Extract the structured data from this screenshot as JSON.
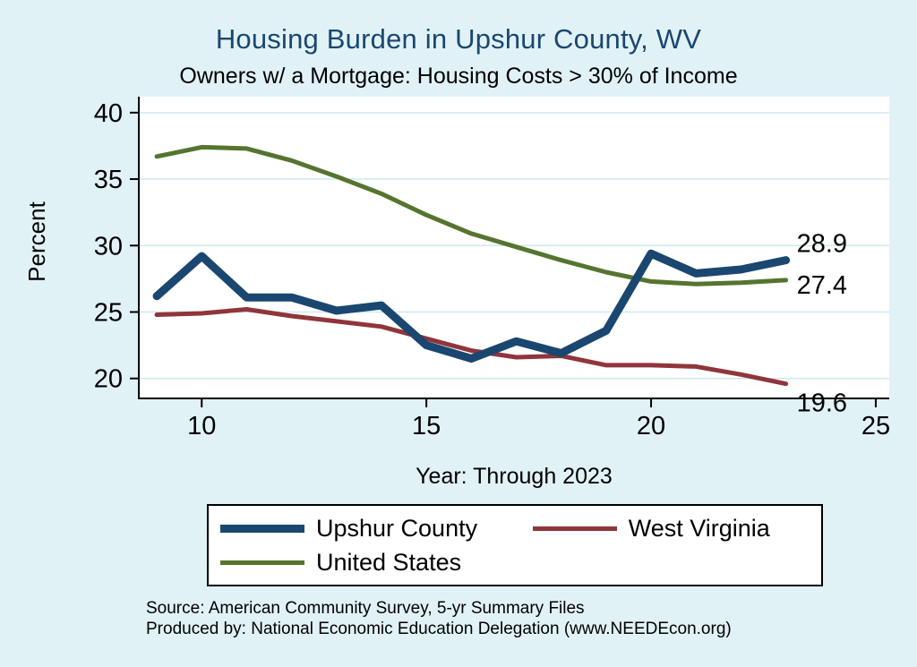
{
  "title": "Housing Burden in Upshur County, WV",
  "subtitle": "Owners w/ a Mortgage: Housing Costs > 30% of Income",
  "axes": {
    "ylabel": "Percent",
    "xlabel": "Year: Through 2023"
  },
  "notes": {
    "line1": "Source: American Community Survey, 5-yr Summary Files",
    "line2": "Produced by: National Economic Education Delegation (www.NEEDEcon.org)"
  },
  "colors": {
    "background": "#e1f2f7",
    "plot_background": "#ffffff",
    "title": "#1a476f",
    "gridline": "#cfe8f2",
    "axis": "#000000",
    "text": "#000000"
  },
  "chart_data": {
    "type": "line",
    "title": "Housing Burden in Upshur County, WV",
    "subtitle": "Owners w/ a Mortgage: Housing Costs > 30% of Income",
    "xlabel": "Year: Through 2023",
    "ylabel": "Percent",
    "x": [
      9,
      10,
      11,
      12,
      13,
      14,
      15,
      16,
      17,
      18,
      19,
      20,
      21,
      22,
      23
    ],
    "series": [
      {
        "name": "Upshur County",
        "color": "#1a476f",
        "line_width": 9,
        "values": [
          26.2,
          29.2,
          26.1,
          26.1,
          25.1,
          25.5,
          22.5,
          21.5,
          22.8,
          21.9,
          23.6,
          29.4,
          27.9,
          28.2,
          28.9
        ],
        "end_label": "28.9",
        "end_label_dy": -9
      },
      {
        "name": "West Virginia",
        "color": "#90353b",
        "line_width": 5,
        "values": [
          24.8,
          24.9,
          25.2,
          24.7,
          24.3,
          23.9,
          23.0,
          22.1,
          21.6,
          21.7,
          21.0,
          21.0,
          20.9,
          20.3,
          19.6
        ],
        "end_label": "19.6",
        "end_label_dy": 31
      },
      {
        "name": "United States",
        "color": "#55752f",
        "line_width": 5,
        "values": [
          36.7,
          37.4,
          37.3,
          36.4,
          35.2,
          33.9,
          32.3,
          30.9,
          29.9,
          28.9,
          28.0,
          27.3,
          27.1,
          27.2,
          27.4
        ],
        "end_label": "27.4",
        "end_label_dy": 15
      }
    ],
    "xticks": [
      {
        "value": 10,
        "label": "10"
      },
      {
        "value": 15,
        "label": "15"
      },
      {
        "value": 20,
        "label": "20"
      },
      {
        "value": 25,
        "label": "25"
      }
    ],
    "yticks": [
      {
        "value": 20,
        "label": "20"
      },
      {
        "value": 25,
        "label": "25"
      },
      {
        "value": 30,
        "label": "30"
      },
      {
        "value": 35,
        "label": "35"
      },
      {
        "value": 40,
        "label": "40"
      }
    ],
    "xlim": [
      8.6,
      25.3
    ],
    "ylim": [
      18.5,
      41.2
    ],
    "grid": "horizontal",
    "legend_position": "bottom",
    "draw_order": [
      2,
      1,
      0
    ]
  }
}
